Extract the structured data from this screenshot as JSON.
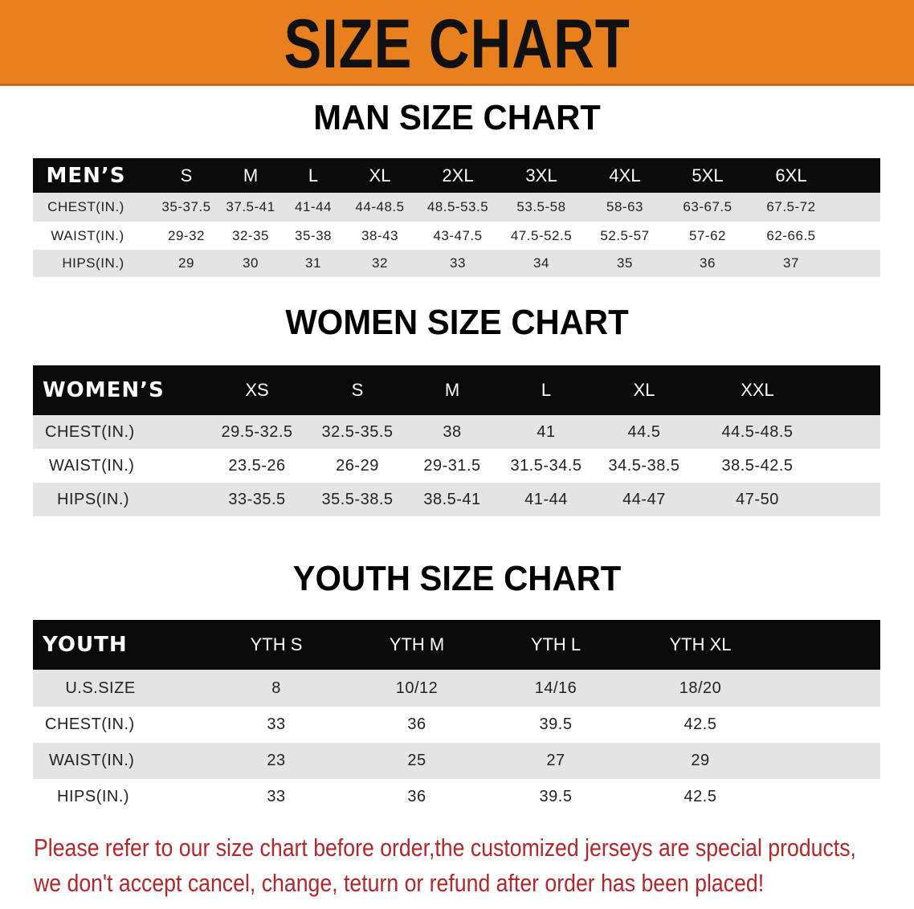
{
  "banner": {
    "title": "SIZE CHART",
    "color": "#E8801E"
  },
  "men": {
    "title": "MAN SIZE CHART",
    "header": [
      "MEN’S",
      "S",
      "M",
      "L",
      "XL",
      "2XL",
      "3XL",
      "4XL",
      "5XL",
      "6XL"
    ],
    "rows": [
      [
        "CHEST(IN.)",
        "35-37.5",
        "37.5-41",
        "41-44",
        "44-48.5",
        "48.5-53.5",
        "53.5-58",
        "58-63",
        "63-67.5",
        "67.5-72"
      ],
      [
        "WAIST(IN.)",
        "29-32",
        "32-35",
        "35-38",
        "38-43",
        "43-47.5",
        "47.5-52.5",
        "52.5-57",
        "57-62",
        "62-66.5"
      ],
      [
        "HIPS(IN.)",
        "29",
        "30",
        "31",
        "32",
        "33",
        "34",
        "35",
        "36",
        "37"
      ]
    ]
  },
  "women": {
    "title": "WOMEN SIZE CHART",
    "header": [
      "WOMEN’S",
      "XS",
      "S",
      "M",
      "L",
      "XL",
      "XXL"
    ],
    "rows": [
      [
        "CHEST(IN.)",
        "29.5-32.5",
        "32.5-35.5",
        "38",
        "41",
        "44.5",
        "44.5-48.5"
      ],
      [
        "WAIST(IN.)",
        "23.5-26",
        "26-29",
        "29-31.5",
        "31.5-34.5",
        "34.5-38.5",
        "38.5-42.5"
      ],
      [
        "HIPS(IN.)",
        "33-35.5",
        "35.5-38.5",
        "38.5-41",
        "41-44",
        "44-47",
        "47-50"
      ]
    ]
  },
  "youth": {
    "title": "YOUTH SIZE CHART",
    "header": [
      "YOUTH",
      "YTH S",
      "YTH M",
      "YTH L",
      "YTH XL"
    ],
    "rows": [
      [
        "U.S.SIZE",
        "8",
        "10/12",
        "14/16",
        "18/20"
      ],
      [
        "CHEST(IN.)",
        "33",
        "36",
        "39.5",
        "42.5"
      ],
      [
        "WAIST(IN.)",
        "23",
        "25",
        "27",
        "29"
      ],
      [
        "HIPS(IN.)",
        "33",
        "36",
        "39.5",
        "42.5"
      ]
    ]
  },
  "notice": {
    "line1": "Please refer to our size chart before order,the customized jerseys are special products,",
    "line2": "we don't accept cancel, change, teturn or refund after order has been placed!",
    "color": "#b3262a"
  }
}
